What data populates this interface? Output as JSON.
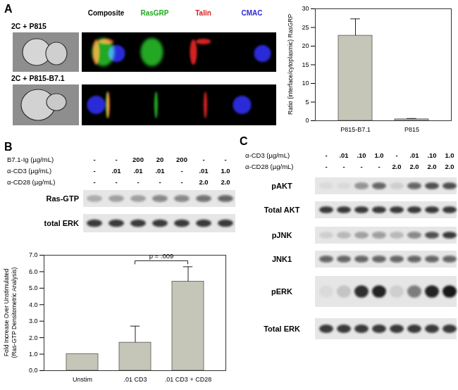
{
  "chart_data": [
    {
      "type": "bar",
      "categories": [
        "P815-B7.1",
        "P815"
      ],
      "values": [
        22.8,
        0.4
      ],
      "errors": [
        4.5,
        0.2
      ],
      "color": "#c6c6b8",
      "ylabel": "Ratio (interface/cytoplasmic) RasGRP",
      "ylim": [
        0,
        30
      ],
      "yticks": [
        0,
        5,
        10,
        15,
        20,
        25,
        30
      ]
    },
    {
      "type": "bar",
      "categories": [
        "Unstim",
        ".01 CD3",
        ".01 CD3 + CD28"
      ],
      "values": [
        1.0,
        1.7,
        5.4
      ],
      "errors": [
        0,
        1.0,
        0.9
      ],
      "color": "#c6c6b8",
      "ylabel": "Fold Increase Over Unstimulated\n(Ras-GTP Densitometric Analysis)",
      "ylim": [
        0,
        7
      ],
      "yticks": [
        0,
        1,
        2,
        3,
        4,
        5,
        6,
        7
      ],
      "annotations": [
        {
          "text": "p = .009",
          "between": [
            ".01 CD3",
            ".01 CD3 + CD28"
          ]
        }
      ]
    }
  ],
  "figure": {
    "panel_labels": [
      "A",
      "B",
      "C"
    ],
    "panel_A": {
      "columns": [
        "Composite",
        "RasGRP",
        "Talin",
        "CMAC"
      ],
      "column_colors": [
        "#000000",
        "#22a822",
        "#d42020",
        "#2a2ad8"
      ],
      "rows": [
        "2C + P815",
        "2C + P815-B7.1"
      ]
    },
    "panel_B": {
      "conditions": [
        {
          "label": "B7.1-Ig (µg/mL)",
          "values": [
            "-",
            "-",
            "200",
            "20",
            "200",
            "-",
            "-"
          ]
        },
        {
          "label": "α-CD3 (µg/mL)",
          "values": [
            "-",
            ".01",
            ".01",
            ".01",
            "-",
            ".01",
            "1.0"
          ]
        },
        {
          "label": "α-CD28 (µg/mL)",
          "values": [
            "-",
            "-",
            "-",
            "-",
            "-",
            "2.0",
            "2.0"
          ]
        }
      ],
      "blots": [
        {
          "label": "Ras-GTP",
          "intensities": [
            0.25,
            0.3,
            0.3,
            0.45,
            0.45,
            0.55,
            0.6
          ]
        },
        {
          "label": "total ERK",
          "intensities": [
            0.8,
            0.8,
            0.8,
            0.8,
            0.8,
            0.8,
            0.8
          ]
        }
      ]
    },
    "panel_C": {
      "conditions": [
        {
          "label": "α-CD3 (µg/mL)",
          "values": [
            "-",
            ".01",
            ".10",
            "1.0",
            "-",
            ".01",
            ".10",
            "1.0"
          ]
        },
        {
          "label": "α-CD28 (µg/mL)",
          "values": [
            "-",
            "-",
            "-",
            "-",
            "2.0",
            "2.0",
            "2.0",
            "2.0"
          ]
        }
      ],
      "blots": [
        {
          "label": "pAKT",
          "intensities": [
            0.05,
            0.05,
            0.4,
            0.6,
            0.1,
            0.6,
            0.7,
            0.7
          ]
        },
        {
          "label": "Total AKT",
          "intensities": [
            0.8,
            0.8,
            0.8,
            0.8,
            0.8,
            0.8,
            0.8,
            0.8
          ]
        },
        {
          "label": "pJNK",
          "intensities": [
            0.1,
            0.2,
            0.3,
            0.35,
            0.2,
            0.45,
            0.7,
            0.8
          ]
        },
        {
          "label": "JNK1",
          "intensities": [
            0.6,
            0.6,
            0.6,
            0.6,
            0.6,
            0.6,
            0.6,
            0.6
          ]
        },
        {
          "label": "pERK",
          "intensities": [
            0.05,
            0.15,
            0.85,
            0.9,
            0.1,
            0.5,
            0.9,
            0.95
          ]
        },
        {
          "label": "Total ERK",
          "intensities": [
            0.8,
            0.8,
            0.8,
            0.8,
            0.8,
            0.8,
            0.8,
            0.8
          ]
        }
      ]
    }
  }
}
